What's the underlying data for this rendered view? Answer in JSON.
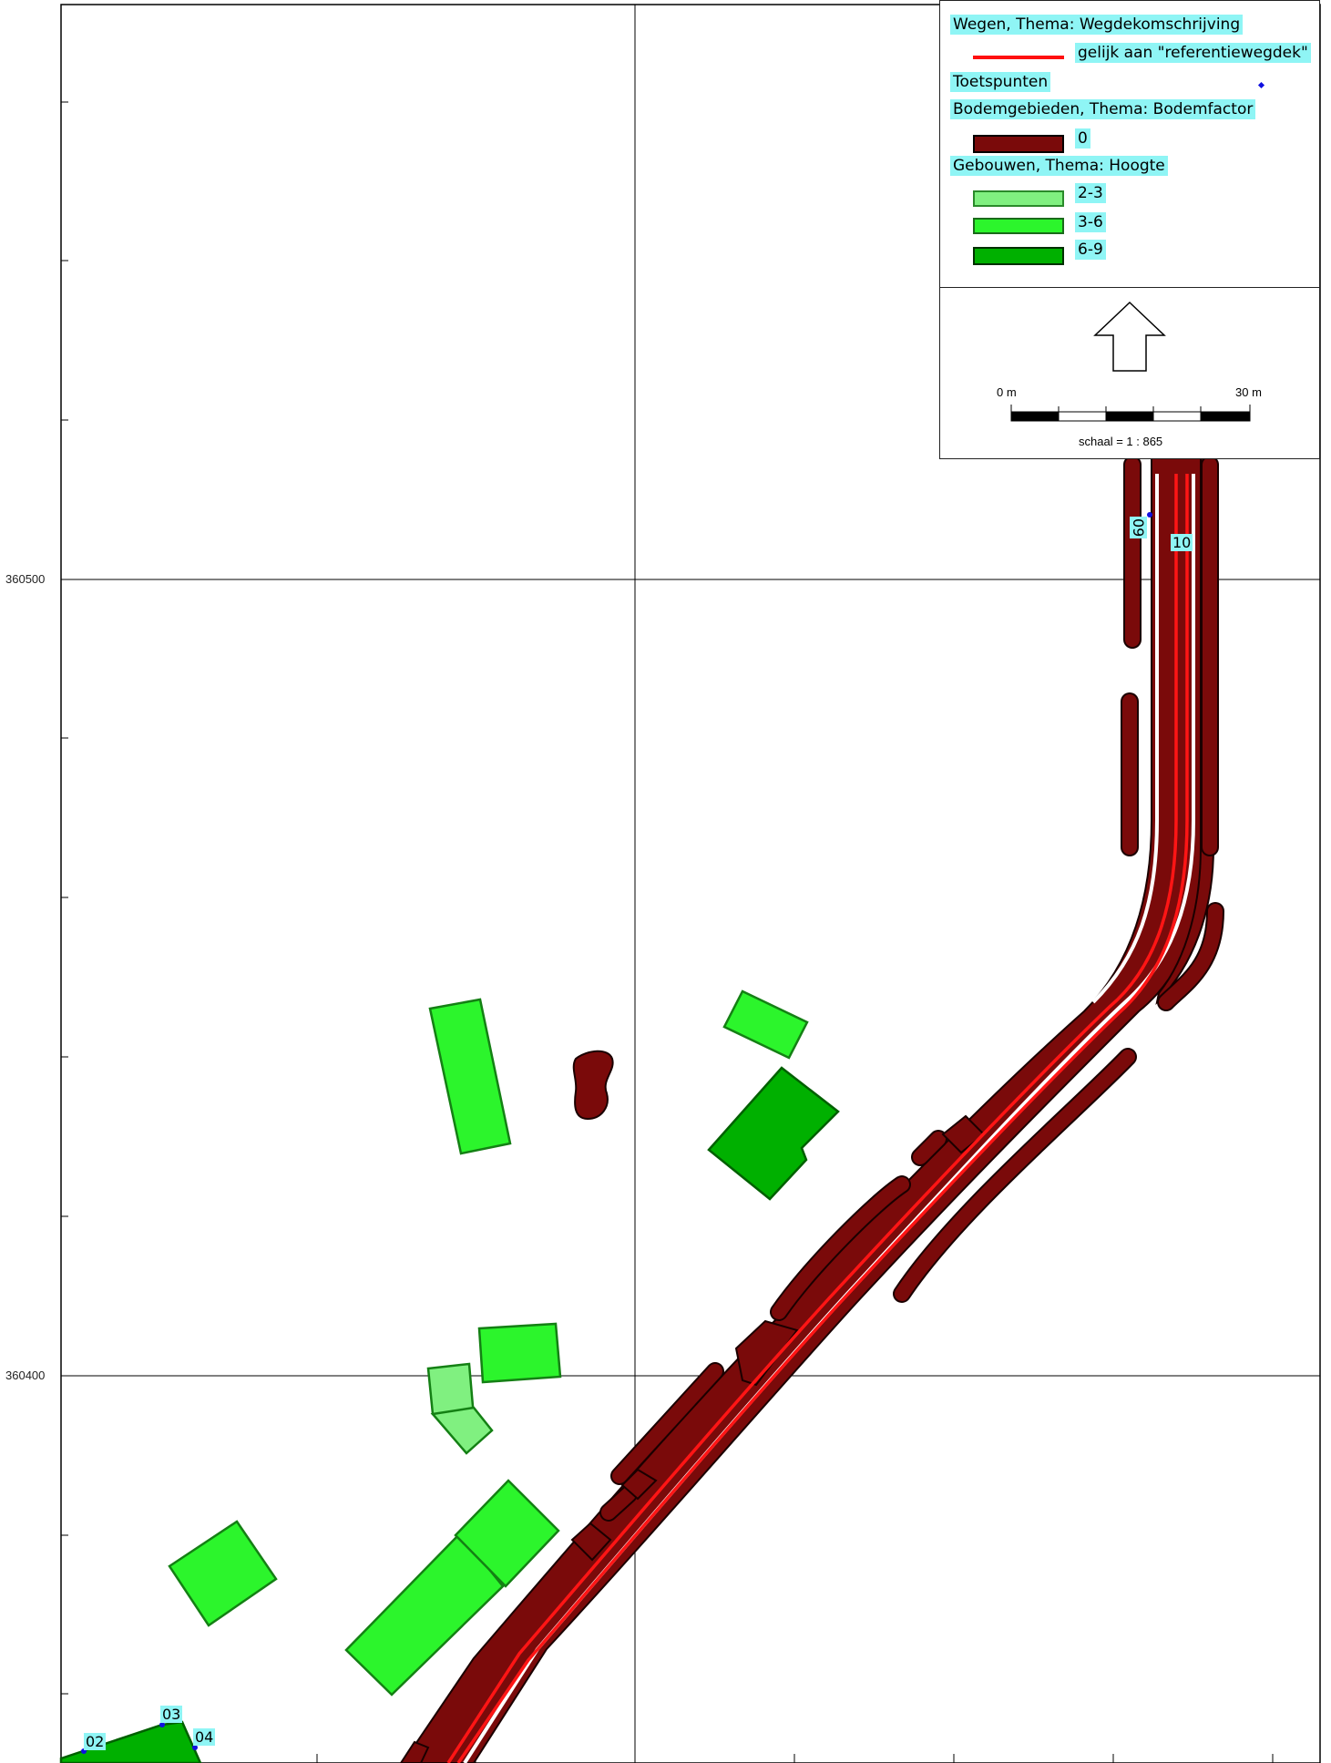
{
  "map": {
    "y_labels": [
      {
        "value": "360500"
      },
      {
        "value": "360400"
      }
    ],
    "point_labels": [
      {
        "id": "02"
      },
      {
        "id": "03"
      },
      {
        "id": "04"
      },
      {
        "id": "09"
      },
      {
        "id": "10"
      }
    ]
  },
  "legend": {
    "roads_title": "Wegen, Thema: Wegdekomschrijving",
    "road_item": "gelijk aan \"referentiewegdek\"",
    "testpoints_title": "Toetspunten",
    "soil_title": "Bodemgebieden, Thema: Bodemfactor",
    "soil_item": "0",
    "buildings_title": "Gebouwen, Thema: Hoogte",
    "building_items": [
      {
        "label": "2-3",
        "color": "#80f080"
      },
      {
        "label": "3-6",
        "color": "#2cf52c"
      },
      {
        "label": "6-9",
        "color": "#00b000"
      }
    ],
    "road_color": "#ff1010",
    "soil_color": "#7a0a0a",
    "testpoint_color": "#1010e0"
  },
  "scale": {
    "start_label": "0 m",
    "end_label": "30 m",
    "ratio_label": "schaal = 1 : 865"
  }
}
